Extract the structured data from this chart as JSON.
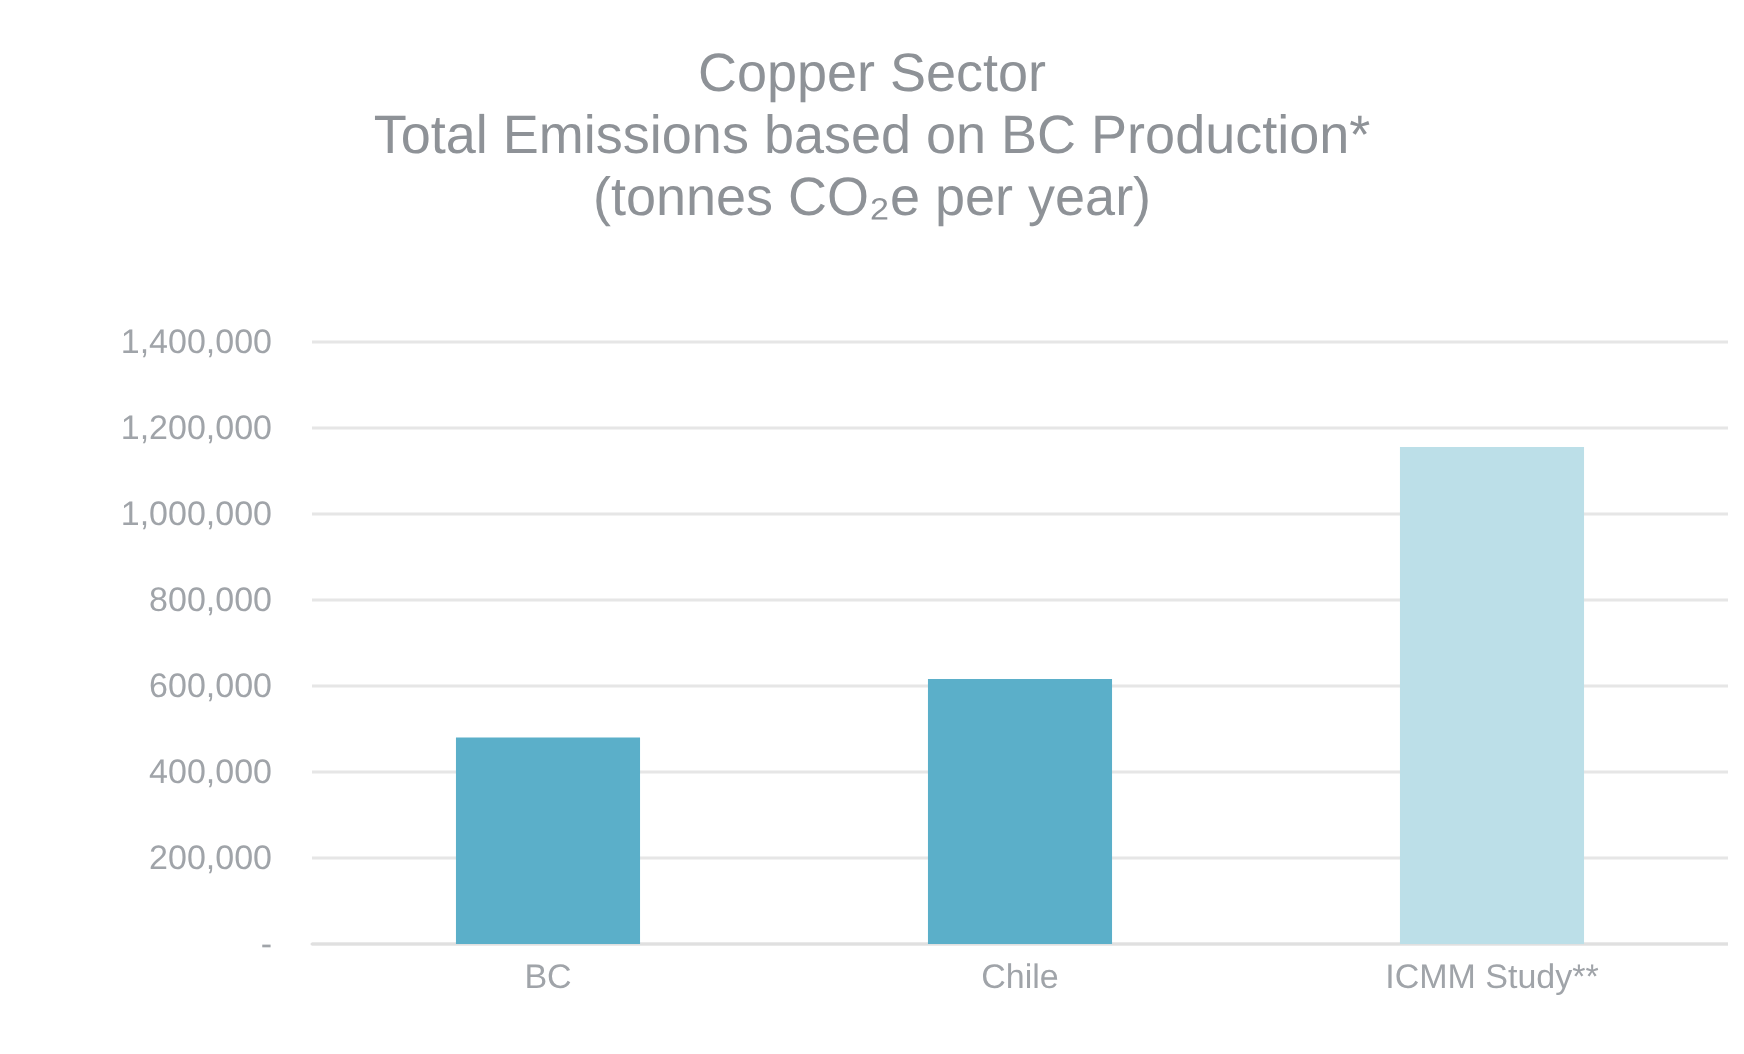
{
  "chart_data": {
    "type": "bar",
    "title": "Copper Sector\nTotal Emissions based on BC Production*\n(tonnes CO₂e per year)",
    "categories": [
      "BC",
      "Chile",
      "ICMM Study**"
    ],
    "values": [
      480000,
      616000,
      1156000
    ],
    "colors": [
      "#5bafc9",
      "#5bafc9",
      "#bcdfe8"
    ],
    "ylim": [
      0,
      1400000
    ],
    "yticks": [
      {
        "value": 0,
        "label": "-"
      },
      {
        "value": 200000,
        "label": "200,000"
      },
      {
        "value": 400000,
        "label": "400,000"
      },
      {
        "value": 600000,
        "label": "600,000"
      },
      {
        "value": 800000,
        "label": "800,000"
      },
      {
        "value": 1000000,
        "label": "1,000,000"
      },
      {
        "value": 1200000,
        "label": "1,200,000"
      },
      {
        "value": 1400000,
        "label": "1,400,000"
      }
    ],
    "grid": "y"
  }
}
